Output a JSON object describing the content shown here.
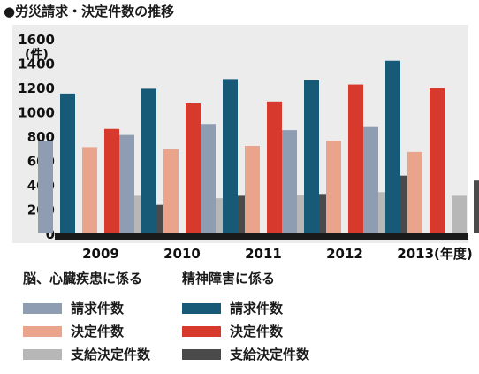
{
  "title": "●労災請求・決定件数の推移",
  "chart_data": {
    "type": "bar",
    "ylabel": "(件)",
    "ylim": [
      0,
      1600
    ],
    "yticks": [
      0,
      200,
      400,
      600,
      800,
      1000,
      1200,
      1400,
      1600
    ],
    "categories": [
      "2009",
      "2010",
      "2011",
      "2012",
      "2013(年度)"
    ],
    "series": [
      {
        "name": "請求件数",
        "group": "脳、心臓疾患に係る",
        "color": "#8e9db1",
        "values": [
          760,
          810,
          900,
          850,
          875
        ]
      },
      {
        "name": "請求件数",
        "group": "精神障害に係る",
        "color": "#165a78",
        "values": [
          1150,
          1190,
          1270,
          1260,
          1420
        ]
      },
      {
        "name": "決定件数",
        "group": "脳、心臓疾患に係る",
        "color": "#eba48c",
        "values": [
          710,
          695,
          720,
          760,
          670
        ]
      },
      {
        "name": "決定件数",
        "group": "精神障害に係る",
        "color": "#d73a2c",
        "values": [
          860,
          1070,
          1085,
          1225,
          1195
        ]
      },
      {
        "name": "支給決定件数",
        "group": "脳、心臓疾患に係る",
        "color": "#b7b7b7",
        "values": [
          310,
          290,
          315,
          340,
          310
        ]
      },
      {
        "name": "支給決定件数",
        "group": "精神障害に係る",
        "color": "#4a4a4a",
        "values": [
          235,
          310,
          325,
          475,
          435
        ]
      }
    ],
    "grid": false
  },
  "legend": {
    "group_left": "脳、心臓疾患に係る",
    "group_right": "精神障害に係る",
    "left_items": [
      "請求件数",
      "決定件数",
      "支給決定件数"
    ],
    "right_items": [
      "請求件数",
      "決定件数",
      "支給決定件数"
    ]
  }
}
